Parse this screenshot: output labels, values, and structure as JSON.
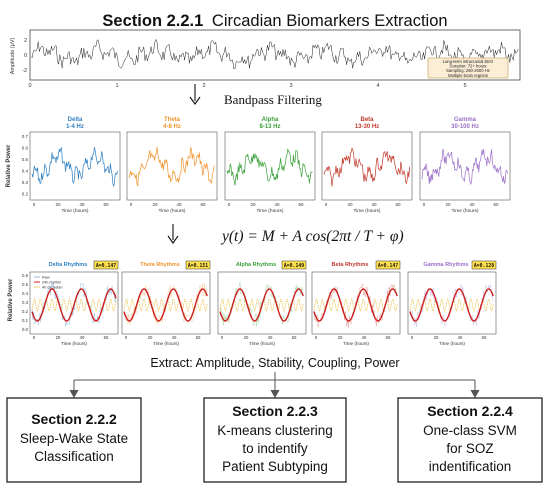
{
  "header": {
    "section_number": "Section 2.2.1",
    "title": "Circadian Biomarkers Extraction"
  },
  "eeg": {
    "y_axis_label": "Amplitude (μV)",
    "y_ticks": [
      "2",
      "0",
      "-2"
    ],
    "x_ticks": [
      "0",
      "1",
      "2",
      "3",
      "4",
      "5"
    ],
    "info_lines": [
      "Long-term intracranial EEG",
      "Duration: 72+ hours",
      "Sampling: 250-2000 Hz",
      "Multiple brain regions"
    ]
  },
  "step_bandpass": "Bandpass Filtering",
  "band_panels": {
    "y_label": "Relative Power",
    "x_label": "Time (hours)",
    "y_ticks": [
      "0.7",
      "0.6",
      "0.5",
      "0.4",
      "0.3",
      "0.2"
    ],
    "x_ticks": [
      "0",
      "20",
      "40",
      "60"
    ],
    "bands": [
      {
        "name": "Delta",
        "range": "1-4 Hz",
        "color": "#2f7fc1"
      },
      {
        "name": "Theta",
        "range": "4-8 Hz",
        "color": "#f0932b"
      },
      {
        "name": "Alpha",
        "range": "8-13 Hz",
        "color": "#3aa03a"
      },
      {
        "name": "Beta",
        "range": "13-30 Hz",
        "color": "#c0392b"
      },
      {
        "name": "Gamma",
        "range": "30-100 Hz",
        "color": "#9b6fc8"
      }
    ]
  },
  "equation": {
    "lhs": "y(t) = M + A cos(2πt / T + φ)"
  },
  "rhythm_panels": {
    "y_label": "Relative Power",
    "x_label": "Time (hours)",
    "y_ticks": [
      "0.6",
      "0.5",
      "0.4",
      "0.3",
      "0.2",
      "0.1",
      "0.0"
    ],
    "x_ticks": [
      "0",
      "20",
      "40",
      "60"
    ],
    "legend": [
      "Raw",
      "24h rhythm",
      "4h circadian"
    ],
    "panels": [
      {
        "title": "Delta Rhythms",
        "amp": "A=0.147",
        "color": "#2f7fc1"
      },
      {
        "title": "Theta Rhythms",
        "amp": "A=0.151",
        "color": "#f0932b"
      },
      {
        "title": "Alpha Rhythms",
        "amp": "A=0.149",
        "color": "#3aa03a"
      },
      {
        "title": "Beta Rhythms",
        "amp": "A=0.147",
        "color": "#c0392b"
      },
      {
        "title": "Gamma Rhythms",
        "amp": "A=0.128",
        "color": "#9b6fc8"
      }
    ]
  },
  "extract_text": "Extract: Amplitude, Stability, Coupling, Power",
  "boxes": [
    {
      "section": "Section 2.2.2",
      "lines": [
        "Sleep-Wake State",
        "Classification"
      ]
    },
    {
      "section": "Section 2.2.3",
      "lines": [
        "K-means clustering",
        "to indentify",
        "Patient Subtyping"
      ]
    },
    {
      "section": "Section 2.2.4",
      "lines": [
        "One-class SVM",
        "for SOZ",
        "indentification"
      ]
    }
  ]
}
